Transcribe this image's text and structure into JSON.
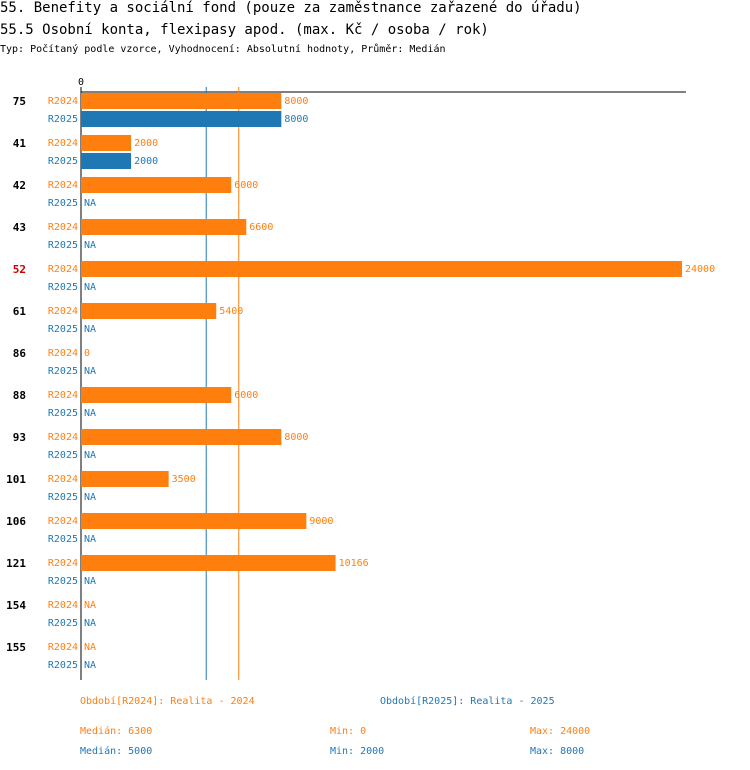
{
  "titles": {
    "line1": "55. Benefity a sociální fond (pouze za zaměstnance zařazené do úřadu)",
    "line2": "55.5 Osobní konta, flexipasy apod. (max. Kč / osoba / rok)",
    "line3": "Typ: Počítaný podle vzorce, Vyhodnocení: Absolutní hodnoty, Průměr: Medián"
  },
  "colors": {
    "r2024": "#ff7f0e",
    "r2025": "#1f77b4",
    "highlight": "#cc0000"
  },
  "chart_data": {
    "type": "bar",
    "orientation": "horizontal",
    "xmin": 0,
    "xmax": 24000,
    "axis_zero_label": "0",
    "na_label": "NA",
    "median_lines": [
      {
        "series": "R2024",
        "value": 6300
      },
      {
        "series": "R2025",
        "value": 5000
      }
    ],
    "series_names": [
      "R2024",
      "R2025"
    ],
    "groups": [
      {
        "id": "75",
        "highlight": false,
        "R2024": 8000,
        "R2025": 8000
      },
      {
        "id": "41",
        "highlight": false,
        "R2024": 2000,
        "R2025": 2000
      },
      {
        "id": "42",
        "highlight": false,
        "R2024": 6000,
        "R2025": null
      },
      {
        "id": "43",
        "highlight": false,
        "R2024": 6600,
        "R2025": null
      },
      {
        "id": "52",
        "highlight": true,
        "R2024": 24000,
        "R2025": null
      },
      {
        "id": "61",
        "highlight": false,
        "R2024": 5400,
        "R2025": null
      },
      {
        "id": "86",
        "highlight": false,
        "R2024": 0,
        "R2025": null
      },
      {
        "id": "88",
        "highlight": false,
        "R2024": 6000,
        "R2025": null
      },
      {
        "id": "93",
        "highlight": false,
        "R2024": 8000,
        "R2025": null
      },
      {
        "id": "101",
        "highlight": false,
        "R2024": 3500,
        "R2025": null
      },
      {
        "id": "106",
        "highlight": false,
        "R2024": 9000,
        "R2025": null
      },
      {
        "id": "121",
        "highlight": false,
        "R2024": 10166,
        "R2025": null
      },
      {
        "id": "154",
        "highlight": false,
        "R2024": null,
        "R2025": null
      },
      {
        "id": "155",
        "highlight": false,
        "R2024": null,
        "R2025": null
      }
    ]
  },
  "legend": {
    "r2024_label": "Období[R2024]: Realita - 2024",
    "r2025_label": "Období[R2025]: Realita - 2025",
    "r2024_median": "Medián: 6300",
    "r2024_min": "Min: 0",
    "r2024_max": "Max: 24000",
    "r2025_median": "Medián: 5000",
    "r2025_min": "Min: 2000",
    "r2025_max": "Max: 8000"
  }
}
